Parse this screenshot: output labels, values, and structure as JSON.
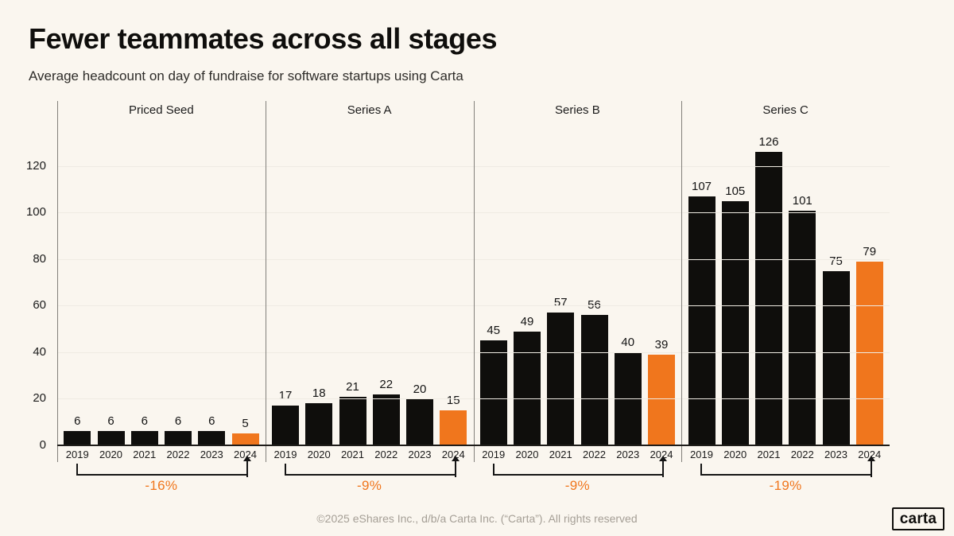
{
  "header": {
    "title": "Fewer teammates across all stages",
    "subtitle": "Average headcount on day of fundraise for software startups using Carta"
  },
  "footer": {
    "copyright": "©2025 eShares Inc., d/b/a Carta Inc. (“Carta”). All rights reserved",
    "logo_text": "carta"
  },
  "colors": {
    "background": "#FAF6EF",
    "bar": "#0F0E0C",
    "highlight": "#F0761D",
    "percent_text": "#F0761D",
    "gridline": "#EFEBE3",
    "divider": "#82807B",
    "axis": "#1F1D1A",
    "footer_text": "#A59F96"
  },
  "chart_data": {
    "type": "bar",
    "title": "Fewer teammates across all stages",
    "subtitle": "Average headcount on day of fundraise for software startups using Carta",
    "categories": [
      "2019",
      "2020",
      "2021",
      "2022",
      "2023",
      "2024"
    ],
    "highlight_category": "2024",
    "y_ticks": [
      0,
      20,
      40,
      60,
      80,
      100,
      120
    ],
    "ylim": [
      0,
      148
    ],
    "grid": true,
    "legend": false,
    "panels": [
      {
        "label": "Priced Seed",
        "values": [
          6,
          6,
          6,
          6,
          6,
          5
        ],
        "change": "-16%"
      },
      {
        "label": "Series A",
        "values": [
          17,
          18,
          21,
          22,
          20,
          15
        ],
        "change": "-9%"
      },
      {
        "label": "Series B",
        "values": [
          45,
          49,
          57,
          56,
          40,
          39
        ],
        "change": "-9%"
      },
      {
        "label": "Series C",
        "values": [
          107,
          105,
          126,
          101,
          75,
          79
        ],
        "change": "-19%"
      }
    ]
  }
}
